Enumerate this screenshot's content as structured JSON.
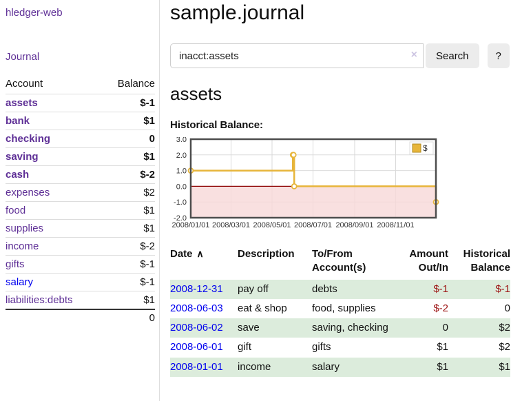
{
  "colors": {
    "link_purple": "#5e2f96",
    "link_blue": "#0000ee",
    "negative_strong": "#9e1616",
    "negative_soft": "#bd7d7d",
    "row_green": "#dcecdc",
    "accent_gold": "#e7b53a"
  },
  "sidebar": {
    "brand": "hledger-web",
    "nav": {
      "journal": "Journal"
    },
    "accounts": {
      "col_account": "Account",
      "col_balance": "Balance",
      "rows": [
        {
          "name": "assets",
          "balance": "$-1"
        },
        {
          "name": "bank",
          "balance": "$1"
        },
        {
          "name": "checking",
          "balance": "0"
        },
        {
          "name": "saving",
          "balance": "$1"
        },
        {
          "name": "cash",
          "balance": "$-2"
        },
        {
          "name": "expenses",
          "balance": "$2"
        },
        {
          "name": "food",
          "balance": "$1"
        },
        {
          "name": "supplies",
          "balance": "$1"
        },
        {
          "name": "income",
          "balance": "$-2"
        },
        {
          "name": "gifts",
          "balance": "$-1"
        },
        {
          "name": "salary",
          "balance": "$-1"
        },
        {
          "name": "liabilities:debts",
          "balance": "$1"
        }
      ],
      "total": "0"
    }
  },
  "main": {
    "title": "sample.journal",
    "search": {
      "value": "inacct:assets",
      "clear": "×",
      "submit": "Search",
      "help": "?"
    },
    "account_title": "assets",
    "chart_title": "Historical Balance:"
  },
  "chart_data": {
    "type": "line",
    "title": "Historical Balance",
    "step": "after",
    "series": [
      {
        "name": "$",
        "points": [
          [
            "2008-01-01",
            1
          ],
          [
            "2008-06-01",
            2
          ],
          [
            "2008-06-02",
            2
          ],
          [
            "2008-06-03",
            0
          ],
          [
            "2008-12-31",
            -1
          ]
        ]
      }
    ],
    "xlim": [
      "2008-01-01",
      "2008-12-31"
    ],
    "ylim": [
      -2,
      3
    ],
    "yticks": [
      "3.0",
      "2.0",
      "1.0",
      "0.0",
      "-1.0",
      "-2.0"
    ],
    "xticks": [
      {
        "date": "2008-01-01",
        "label": "2008/01/01"
      },
      {
        "date": "2008-03-01",
        "label": "2008/03/01"
      },
      {
        "date": "2008-05-01",
        "label": "2008/05/01"
      },
      {
        "date": "2008-07-01",
        "label": "2008/07/01"
      },
      {
        "date": "2008-09-01",
        "label": "2008/09/01"
      },
      {
        "date": "2008-11-01",
        "label": "2008/11/01"
      }
    ],
    "legend": {
      "label": "$",
      "position": "top-right"
    },
    "line_color": "#e7b53a",
    "negative_fill": "#f8d8d8",
    "zero_line_color": "#8b0000",
    "grid": true
  },
  "register": {
    "headers": {
      "date": "Date",
      "sort_icon": "∧",
      "description": "Description",
      "accounts": "To/From Account(s)",
      "amount": "Amount Out/In",
      "balance": "Historical Balance"
    },
    "rows": [
      {
        "date": "2008-12-31",
        "description": "pay off",
        "accounts": "debts",
        "amount": "$-1",
        "balance": "$-1"
      },
      {
        "date": "2008-06-03",
        "description": "eat & shop",
        "accounts": "food, supplies",
        "amount": "$-2",
        "balance": "0"
      },
      {
        "date": "2008-06-02",
        "description": "save",
        "accounts": "saving, checking",
        "amount": "0",
        "balance": "$2"
      },
      {
        "date": "2008-06-01",
        "description": "gift",
        "accounts": "gifts",
        "amount": "$1",
        "balance": "$2"
      },
      {
        "date": "2008-01-01",
        "description": "income",
        "accounts": "salary",
        "amount": "$1",
        "balance": "$1"
      }
    ]
  }
}
